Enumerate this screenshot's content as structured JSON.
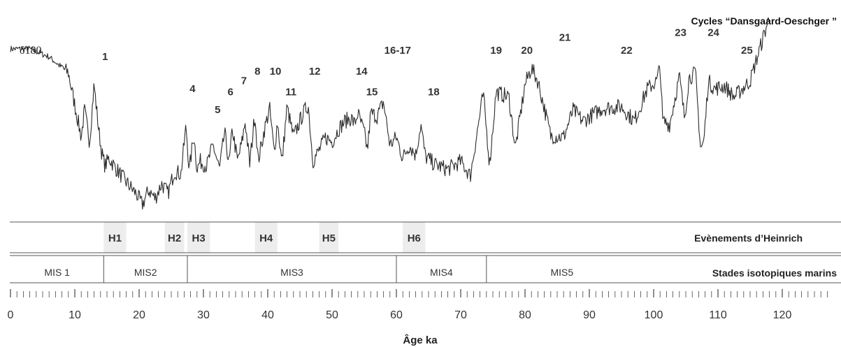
{
  "chart_data": {
    "type": "line",
    "title": "Cycles “Dansgaard-Oeschger ”",
    "ylabel": "δ180",
    "xlabel": "Âge ka",
    "xlim": [
      0,
      127
    ],
    "x_ticks": [
      0,
      10,
      20,
      30,
      40,
      50,
      60,
      70,
      80,
      90,
      100,
      110,
      120
    ],
    "series": [
      {
        "x": [
          0,
          3,
          6,
          9,
          11,
          11.5,
          12.3,
          13,
          13.7,
          14.2,
          14.7,
          15.3,
          16.5,
          18,
          19.5,
          20.5,
          21.5,
          22.5,
          23.5,
          24.5,
          25.5,
          26.5,
          27.3,
          27.8,
          28.5,
          29,
          29.5,
          30.5,
          31.5,
          32.5,
          33.3,
          34,
          34.5,
          35.3,
          36,
          36.5,
          37.2,
          38,
          38.5,
          39.5,
          40.3,
          41,
          41.5,
          42.2,
          43,
          44,
          45.5,
          46.3,
          47,
          48,
          49,
          50,
          51,
          52,
          53,
          53.5,
          54,
          55,
          55.5,
          56,
          57,
          58,
          59,
          60,
          61,
          62,
          63,
          63.8,
          64.5,
          66,
          68,
          70,
          71.5,
          73.5,
          74.5,
          75.5,
          77.5,
          78.5,
          80,
          81,
          82,
          84,
          86,
          87.5,
          89,
          92,
          95,
          97,
          99,
          100.5,
          101,
          101.4,
          102.5,
          104,
          104.8,
          105.5,
          106.5,
          107.3,
          107.8,
          108.5,
          109.5,
          111,
          112.5,
          115,
          118
        ],
        "y": [
          1.0,
          1.0,
          0.95,
          0.85,
          0.45,
          0.62,
          0.42,
          0.78,
          0.5,
          0.35,
          0.27,
          0.32,
          0.25,
          0.17,
          0.1,
          0.03,
          0.12,
          0.07,
          0.16,
          0.1,
          0.24,
          0.22,
          0.52,
          0.24,
          0.47,
          0.25,
          0.3,
          0.27,
          0.4,
          0.25,
          0.48,
          0.28,
          0.5,
          0.3,
          0.42,
          0.55,
          0.28,
          0.6,
          0.3,
          0.5,
          0.63,
          0.35,
          0.55,
          0.29,
          0.64,
          0.45,
          0.6,
          0.65,
          0.3,
          0.37,
          0.45,
          0.42,
          0.5,
          0.55,
          0.57,
          0.53,
          0.6,
          0.48,
          0.37,
          0.6,
          0.58,
          0.67,
          0.4,
          0.45,
          0.32,
          0.4,
          0.34,
          0.53,
          0.33,
          0.28,
          0.25,
          0.3,
          0.21,
          0.72,
          0.28,
          0.73,
          0.7,
          0.38,
          0.78,
          0.88,
          0.8,
          0.46,
          0.45,
          0.62,
          0.55,
          0.63,
          0.64,
          0.55,
          0.75,
          0.8,
          0.9,
          0.55,
          0.53,
          0.83,
          0.57,
          0.82,
          0.85,
          0.38,
          0.42,
          0.8,
          0.75,
          0.77,
          0.7,
          0.8,
          1.2
        ]
      }
    ],
    "cycle_labels": [
      {
        "text": "1",
        "x": 14.7,
        "level": 0.93
      },
      {
        "text": "4",
        "x": 28.3,
        "level": 0.73
      },
      {
        "text": "5",
        "x": 32.2,
        "level": 0.6
      },
      {
        "text": "6",
        "x": 34.2,
        "level": 0.71
      },
      {
        "text": "7",
        "x": 36.3,
        "level": 0.78
      },
      {
        "text": "8",
        "x": 38.4,
        "level": 0.84
      },
      {
        "text": "10",
        "x": 41.2,
        "level": 0.84
      },
      {
        "text": "11",
        "x": 43.6,
        "level": 0.71
      },
      {
        "text": "12",
        "x": 47.3,
        "level": 0.84
      },
      {
        "text": "14",
        "x": 54.6,
        "level": 0.84
      },
      {
        "text": "15",
        "x": 56.2,
        "level": 0.71
      },
      {
        "text": "16-17",
        "x": 60.2,
        "level": 0.97
      },
      {
        "text": "18",
        "x": 65.8,
        "level": 0.71
      },
      {
        "text": "19",
        "x": 75.5,
        "level": 0.97
      },
      {
        "text": "20",
        "x": 80.3,
        "level": 0.97
      },
      {
        "text": "21",
        "x": 86.2,
        "level": 1.05
      },
      {
        "text": "22",
        "x": 95.8,
        "level": 0.97
      },
      {
        "text": "23",
        "x": 104.2,
        "level": 1.08
      },
      {
        "text": "24",
        "x": 109.3,
        "level": 1.08
      },
      {
        "text": "25",
        "x": 114.5,
        "level": 0.97
      }
    ],
    "heinrich_row": {
      "title": "Evènements d’Heinrich",
      "events": [
        {
          "label": "H1",
          "from": 14.5,
          "to": 18
        },
        {
          "label": "H2",
          "from": 24,
          "to": 27
        },
        {
          "label": "H3",
          "from": 27.5,
          "to": 31
        },
        {
          "label": "H4",
          "from": 38,
          "to": 41.5
        },
        {
          "label": "H5",
          "from": 48,
          "to": 51
        },
        {
          "label": "H6",
          "from": 61,
          "to": 64.5
        }
      ]
    },
    "mis_row": {
      "title": "Stades isotopiques marins",
      "stages": [
        {
          "label": "MIS 1",
          "from": 0,
          "to": 14.5
        },
        {
          "label": "MIS2",
          "from": 14.5,
          "to": 27.5
        },
        {
          "label": "MIS3",
          "from": 27.5,
          "to": 60
        },
        {
          "label": "MIS4",
          "from": 60,
          "to": 74
        },
        {
          "label": "MIS5",
          "from": 74,
          "to": 127
        }
      ]
    },
    "colors": {
      "line": "#2b2b2b",
      "band": "#ededed",
      "text": "#333333"
    }
  }
}
